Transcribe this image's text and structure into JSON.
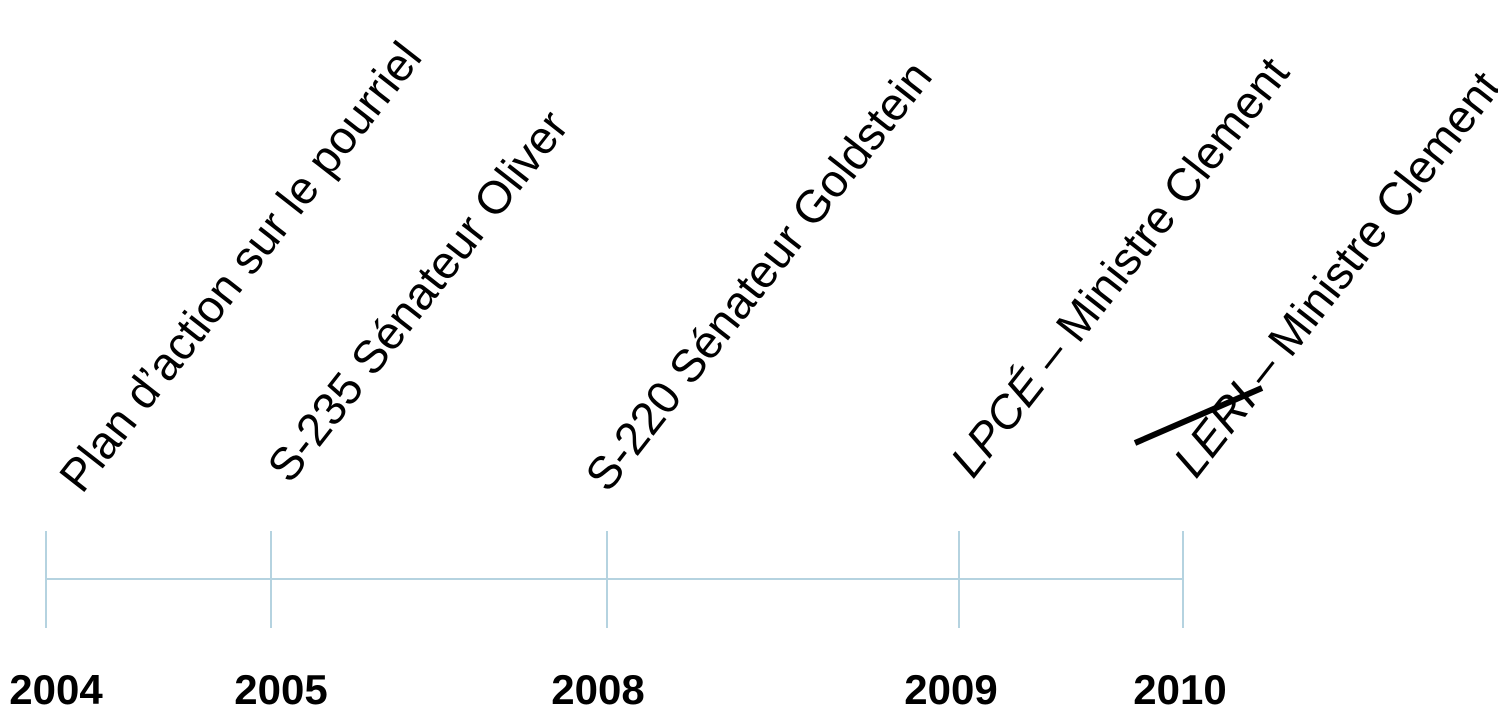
{
  "timeline": {
    "events": [
      {
        "year": "2004",
        "label": "Plan d’action sur le pourriel",
        "italic_prefix": "",
        "rest": "",
        "struck": false
      },
      {
        "year": "2005",
        "label": "S-235 Sénateur Oliver",
        "italic_prefix": "",
        "rest": "",
        "struck": false
      },
      {
        "year": "2008",
        "label": "S-220 Sénateur Goldstein",
        "italic_prefix": "",
        "rest": "",
        "struck": false
      },
      {
        "year": "2009",
        "label": "LPCÉ – Ministre Clement",
        "italic_prefix": "LPCÉ",
        "rest": " – Ministre Clement",
        "struck": false
      },
      {
        "year": "2010",
        "label": "LERI – Ministre Clement",
        "italic_prefix": "LERI",
        "rest": " – Ministre Clement",
        "struck": true
      }
    ],
    "colors": {
      "axis": "#b5d3e0",
      "text": "#000000",
      "strike": "#000000"
    }
  }
}
